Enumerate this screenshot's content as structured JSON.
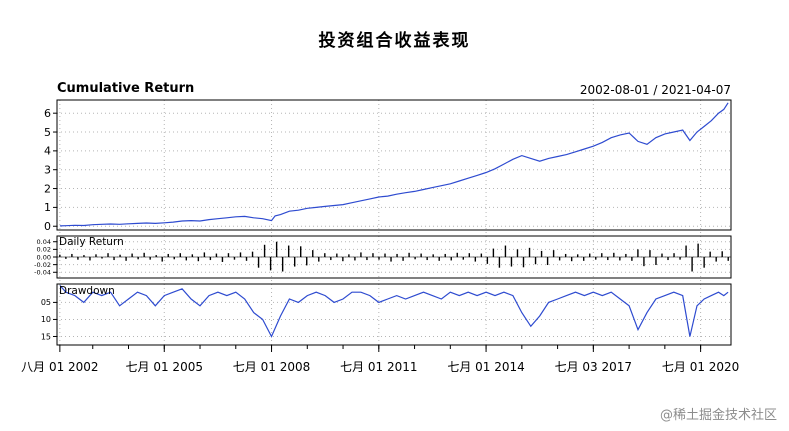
{
  "page": {
    "title": "投资组合收益表现",
    "watermark": "@稀土掘金技术社区"
  },
  "header": {
    "panel_title": "Cumulative Return",
    "date_range": "2002-08-01 / 2021-04-07"
  },
  "panels_labels": {
    "daily_label": "Daily Return",
    "drawdown_label": "Drawdown"
  },
  "chart_data": {
    "type": "line",
    "title": "投资组合收益表现",
    "subtitle_left": "Cumulative Return",
    "date_range": "2002-08-01 / 2021-04-07",
    "grid": {
      "color": "#b5b5b5",
      "style": "dotted"
    },
    "x_axis": {
      "min": 2002.5,
      "max": 2021.35,
      "ticks": [
        {
          "t": 2002.58,
          "label": "八月 01 2002"
        },
        {
          "t": 2005.5,
          "label": "七月 01 2005"
        },
        {
          "t": 2008.5,
          "label": "七月 01 2008"
        },
        {
          "t": 2011.5,
          "label": "七月 01 2011"
        },
        {
          "t": 2014.5,
          "label": "七月 01 2014"
        },
        {
          "t": 2017.5,
          "label": "七月 03 2017"
        },
        {
          "t": 2020.5,
          "label": "七月 01 2020"
        }
      ]
    },
    "panels": [
      {
        "name": "cumulative_return",
        "type": "line",
        "color": "#2e4bd0",
        "ylim": [
          -0.2,
          6.7
        ],
        "y_ticks": [
          0,
          1,
          2,
          3,
          4,
          5,
          6
        ],
        "y_tick_labels": [
          "0",
          "1",
          "2",
          "3",
          "4",
          "5",
          "6"
        ],
        "points": [
          [
            2002.58,
            0.02
          ],
          [
            2002.75,
            0.03
          ],
          [
            2003.0,
            0.05
          ],
          [
            2003.25,
            0.04
          ],
          [
            2003.5,
            0.08
          ],
          [
            2003.75,
            0.1
          ],
          [
            2004.0,
            0.12
          ],
          [
            2004.25,
            0.1
          ],
          [
            2004.5,
            0.13
          ],
          [
            2004.75,
            0.15
          ],
          [
            2005.0,
            0.17
          ],
          [
            2005.25,
            0.15
          ],
          [
            2005.5,
            0.18
          ],
          [
            2005.75,
            0.22
          ],
          [
            2006.0,
            0.28
          ],
          [
            2006.25,
            0.3
          ],
          [
            2006.5,
            0.28
          ],
          [
            2006.75,
            0.35
          ],
          [
            2007.0,
            0.4
          ],
          [
            2007.25,
            0.45
          ],
          [
            2007.5,
            0.5
          ],
          [
            2007.75,
            0.52
          ],
          [
            2008.0,
            0.45
          ],
          [
            2008.25,
            0.4
          ],
          [
            2008.5,
            0.3
          ],
          [
            2008.6,
            0.55
          ],
          [
            2008.75,
            0.62
          ],
          [
            2009.0,
            0.8
          ],
          [
            2009.25,
            0.85
          ],
          [
            2009.5,
            0.95
          ],
          [
            2009.75,
            1.0
          ],
          [
            2010.0,
            1.05
          ],
          [
            2010.25,
            1.1
          ],
          [
            2010.5,
            1.15
          ],
          [
            2010.75,
            1.25
          ],
          [
            2011.0,
            1.35
          ],
          [
            2011.25,
            1.45
          ],
          [
            2011.5,
            1.55
          ],
          [
            2011.75,
            1.6
          ],
          [
            2012.0,
            1.7
          ],
          [
            2012.25,
            1.78
          ],
          [
            2012.5,
            1.85
          ],
          [
            2012.75,
            1.95
          ],
          [
            2013.0,
            2.05
          ],
          [
            2013.25,
            2.15
          ],
          [
            2013.5,
            2.25
          ],
          [
            2013.75,
            2.4
          ],
          [
            2014.0,
            2.55
          ],
          [
            2014.25,
            2.7
          ],
          [
            2014.5,
            2.85
          ],
          [
            2014.75,
            3.05
          ],
          [
            2015.0,
            3.3
          ],
          [
            2015.25,
            3.55
          ],
          [
            2015.5,
            3.75
          ],
          [
            2015.75,
            3.6
          ],
          [
            2016.0,
            3.45
          ],
          [
            2016.25,
            3.6
          ],
          [
            2016.5,
            3.7
          ],
          [
            2016.75,
            3.8
          ],
          [
            2017.0,
            3.95
          ],
          [
            2017.25,
            4.1
          ],
          [
            2017.5,
            4.25
          ],
          [
            2017.75,
            4.45
          ],
          [
            2018.0,
            4.7
          ],
          [
            2018.25,
            4.85
          ],
          [
            2018.5,
            4.95
          ],
          [
            2018.75,
            4.5
          ],
          [
            2019.0,
            4.35
          ],
          [
            2019.25,
            4.7
          ],
          [
            2019.5,
            4.9
          ],
          [
            2019.75,
            5.0
          ],
          [
            2020.0,
            5.1
          ],
          [
            2020.2,
            4.55
          ],
          [
            2020.4,
            5.0
          ],
          [
            2020.6,
            5.3
          ],
          [
            2020.8,
            5.6
          ],
          [
            2021.0,
            6.0
          ],
          [
            2021.15,
            6.2
          ],
          [
            2021.27,
            6.55
          ]
        ]
      },
      {
        "name": "daily_return",
        "type": "bar",
        "color": "#000000",
        "ylim": [
          -0.055,
          0.055
        ],
        "y_ticks": [
          0.04,
          0.02,
          0,
          -0.02,
          -0.04
        ],
        "y_tick_labels": [
          "0.04",
          "0.02",
          "0.00",
          "-0.02",
          "-0.04"
        ],
        "x_start": 2002.58,
        "x_step": 0.1684,
        "values": [
          0.006,
          -0.005,
          0.008,
          -0.007,
          0.005,
          -0.009,
          0.007,
          -0.004,
          0.01,
          -0.008,
          0.006,
          -0.01,
          0.009,
          -0.006,
          0.011,
          -0.007,
          0.005,
          -0.012,
          0.008,
          -0.006,
          0.01,
          -0.009,
          0.007,
          -0.011,
          0.012,
          -0.008,
          0.009,
          -0.013,
          0.01,
          -0.007,
          0.012,
          -0.01,
          0.014,
          -0.028,
          0.032,
          -0.035,
          0.04,
          -0.038,
          0.03,
          -0.025,
          0.028,
          -0.022,
          0.018,
          -0.012,
          0.01,
          -0.008,
          0.009,
          -0.011,
          0.007,
          -0.009,
          0.012,
          -0.008,
          0.01,
          -0.007,
          0.009,
          -0.012,
          0.008,
          -0.01,
          0.011,
          -0.006,
          0.009,
          -0.008,
          0.007,
          -0.01,
          0.008,
          -0.009,
          0.011,
          -0.007,
          0.01,
          -0.012,
          0.009,
          -0.018,
          0.022,
          -0.028,
          0.03,
          -0.025,
          0.02,
          -0.027,
          0.024,
          -0.019,
          0.016,
          -0.021,
          0.018,
          -0.009,
          0.008,
          -0.011,
          0.007,
          -0.01,
          0.009,
          -0.007,
          0.01,
          -0.008,
          0.011,
          -0.009,
          0.008,
          -0.01,
          0.02,
          -0.024,
          0.018,
          -0.021,
          0.009,
          -0.008,
          0.01,
          -0.007,
          0.03,
          -0.038,
          0.035,
          -0.028,
          0.014,
          -0.012,
          0.015,
          -0.01
        ]
      },
      {
        "name": "drawdown",
        "type": "line",
        "color": "#2e4bd0",
        "ylim": [
          -0.175,
          0.004
        ],
        "y_ticks": [
          -0.05,
          -0.1,
          -0.15
        ],
        "y_tick_labels": [
          "05",
          "10",
          "15"
        ],
        "points": [
          [
            2002.58,
            0.0
          ],
          [
            2002.75,
            -0.02
          ],
          [
            2003.0,
            -0.03
          ],
          [
            2003.25,
            -0.05
          ],
          [
            2003.5,
            -0.02
          ],
          [
            2003.75,
            -0.03
          ],
          [
            2004.0,
            -0.02
          ],
          [
            2004.25,
            -0.06
          ],
          [
            2004.5,
            -0.04
          ],
          [
            2004.75,
            -0.02
          ],
          [
            2005.0,
            -0.03
          ],
          [
            2005.25,
            -0.06
          ],
          [
            2005.5,
            -0.03
          ],
          [
            2005.75,
            -0.02
          ],
          [
            2006.0,
            -0.01
          ],
          [
            2006.25,
            -0.04
          ],
          [
            2006.5,
            -0.06
          ],
          [
            2006.75,
            -0.03
          ],
          [
            2007.0,
            -0.02
          ],
          [
            2007.25,
            -0.03
          ],
          [
            2007.5,
            -0.02
          ],
          [
            2007.75,
            -0.04
          ],
          [
            2008.0,
            -0.08
          ],
          [
            2008.25,
            -0.1
          ],
          [
            2008.5,
            -0.15
          ],
          [
            2008.75,
            -0.09
          ],
          [
            2009.0,
            -0.04
          ],
          [
            2009.25,
            -0.05
          ],
          [
            2009.5,
            -0.03
          ],
          [
            2009.75,
            -0.02
          ],
          [
            2010.0,
            -0.03
          ],
          [
            2010.25,
            -0.05
          ],
          [
            2010.5,
            -0.04
          ],
          [
            2010.75,
            -0.02
          ],
          [
            2011.0,
            -0.02
          ],
          [
            2011.25,
            -0.03
          ],
          [
            2011.5,
            -0.05
          ],
          [
            2011.75,
            -0.04
          ],
          [
            2012.0,
            -0.03
          ],
          [
            2012.25,
            -0.04
          ],
          [
            2012.5,
            -0.03
          ],
          [
            2012.75,
            -0.02
          ],
          [
            2013.0,
            -0.03
          ],
          [
            2013.25,
            -0.04
          ],
          [
            2013.5,
            -0.02
          ],
          [
            2013.75,
            -0.03
          ],
          [
            2014.0,
            -0.02
          ],
          [
            2014.25,
            -0.03
          ],
          [
            2014.5,
            -0.02
          ],
          [
            2014.75,
            -0.03
          ],
          [
            2015.0,
            -0.02
          ],
          [
            2015.25,
            -0.03
          ],
          [
            2015.5,
            -0.08
          ],
          [
            2015.75,
            -0.12
          ],
          [
            2016.0,
            -0.09
          ],
          [
            2016.25,
            -0.05
          ],
          [
            2016.5,
            -0.04
          ],
          [
            2016.75,
            -0.03
          ],
          [
            2017.0,
            -0.02
          ],
          [
            2017.25,
            -0.03
          ],
          [
            2017.5,
            -0.02
          ],
          [
            2017.75,
            -0.03
          ],
          [
            2018.0,
            -0.02
          ],
          [
            2018.25,
            -0.04
          ],
          [
            2018.5,
            -0.06
          ],
          [
            2018.75,
            -0.13
          ],
          [
            2019.0,
            -0.08
          ],
          [
            2019.25,
            -0.04
          ],
          [
            2019.5,
            -0.03
          ],
          [
            2019.75,
            -0.02
          ],
          [
            2020.0,
            -0.03
          ],
          [
            2020.2,
            -0.15
          ],
          [
            2020.4,
            -0.06
          ],
          [
            2020.6,
            -0.04
          ],
          [
            2020.8,
            -0.03
          ],
          [
            2021.0,
            -0.02
          ],
          [
            2021.15,
            -0.03
          ],
          [
            2021.27,
            -0.02
          ]
        ]
      }
    ]
  }
}
